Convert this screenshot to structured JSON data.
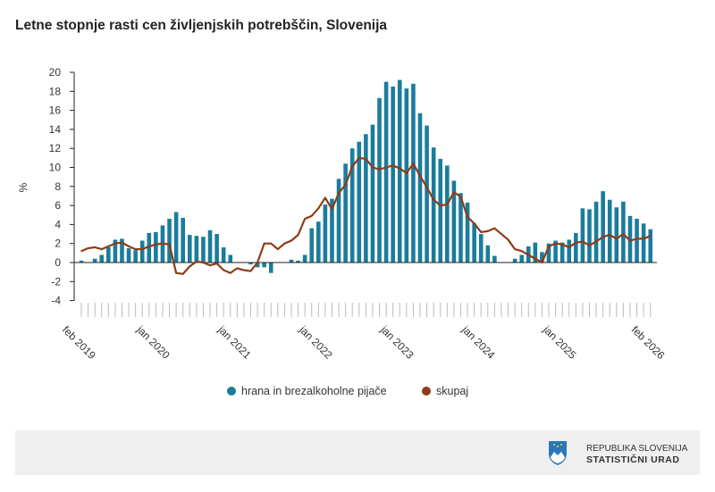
{
  "chart_data": {
    "type": "bar+line",
    "title": "Letne stopnje rasti cen življenjskih potrebščin, Slovenija",
    "ylabel": "%",
    "ylim": [
      -4,
      20
    ],
    "yticks": [
      -4,
      -2,
      0,
      2,
      4,
      6,
      8,
      10,
      12,
      14,
      16,
      18,
      20
    ],
    "x_start": "feb 2019",
    "x_end": "feb 2026",
    "xtick_labels": [
      {
        "index": 0,
        "label": "feb 2019"
      },
      {
        "index": 11,
        "label": "jan 2020"
      },
      {
        "index": 23,
        "label": "jan 2021"
      },
      {
        "index": 35,
        "label": "jan 2022"
      },
      {
        "index": 47,
        "label": "jan 2023"
      },
      {
        "index": 59,
        "label": "jan 2024"
      },
      {
        "index": 71,
        "label": "jan 2025"
      },
      {
        "index": 84,
        "label": "feb 2026"
      }
    ],
    "legend_position": "bottom",
    "series": [
      {
        "name": "hrana in brezalkoholne pijače",
        "kind": "bar",
        "color": "#1b7c9c",
        "values": [
          0.2,
          0,
          0.4,
          0.8,
          1.6,
          2.4,
          2.5,
          1.5,
          1.3,
          2.3,
          3.1,
          3.2,
          3.9,
          4.6,
          5.3,
          4.7,
          2.9,
          2.8,
          2.7,
          3.4,
          3.0,
          1.6,
          0.8,
          0,
          0,
          -0.2,
          -0.5,
          -0.5,
          -1.1,
          0,
          0,
          0.3,
          0.2,
          0.8,
          3.6,
          4.3,
          6.1,
          6.7,
          8.8,
          10.4,
          12.0,
          12.7,
          13.5,
          14.5,
          17.3,
          19.0,
          18.5,
          19.2,
          18.3,
          18.8,
          15.7,
          14.4,
          12.1,
          10.9,
          10.2,
          8.6,
          7.3,
          6.3,
          4.1,
          3.0,
          1.8,
          0.7,
          0,
          0,
          0.4,
          0.8,
          1.7,
          2.1,
          1.1,
          2.0,
          2.3,
          2.1,
          2.4,
          3.1,
          5.7,
          5.6,
          6.4,
          7.5,
          6.6,
          5.8,
          6.4,
          4.9,
          4.6,
          4.1,
          3.5
        ]
      },
      {
        "name": "skupaj",
        "kind": "line",
        "color": "#8e3b17",
        "values": [
          1.2,
          1.5,
          1.6,
          1.4,
          1.7,
          2.0,
          2.1,
          1.7,
          1.4,
          1.4,
          1.7,
          1.9,
          2.0,
          1.9,
          -1.1,
          -1.2,
          -0.4,
          0.1,
          0,
          -0.3,
          -0.1,
          -0.8,
          -1.1,
          -0.6,
          -0.8,
          -0.9,
          0.0,
          2.0,
          2.0,
          1.4,
          2.0,
          2.3,
          2.9,
          4.6,
          4.9,
          5.7,
          6.8,
          5.6,
          7.3,
          8.2,
          10.1,
          11.0,
          10.9,
          10.0,
          9.8,
          10.0,
          10.2,
          9.9,
          9.4,
          10.4,
          9.1,
          7.9,
          6.6,
          6.0,
          6.1,
          7.4,
          6.9,
          4.8,
          4.1,
          3.2,
          3.3,
          3.6,
          3.0,
          2.4,
          1.4,
          1.2,
          0.8,
          0.4,
          0.0,
          1.7,
          2.0,
          1.9,
          1.6,
          2.1,
          2.2,
          1.8,
          2.2,
          2.7,
          2.9,
          2.5,
          3.0,
          2.3,
          2.5,
          2.5,
          2.8
        ]
      }
    ]
  },
  "footer": {
    "org_line1": "REPUBLIKA SLOVENIJA",
    "org_line2": "STATISTIČNI URAD"
  }
}
